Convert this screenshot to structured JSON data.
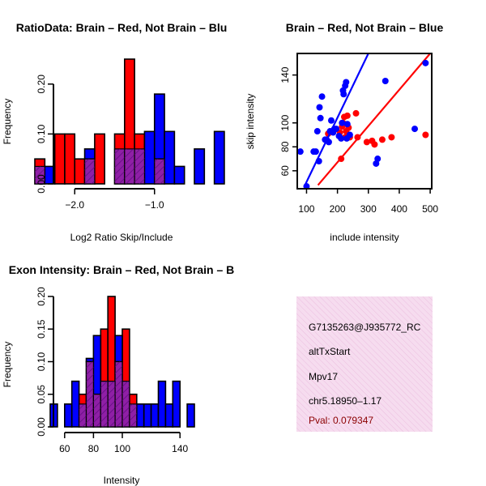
{
  "colors": {
    "red": "#ff0000",
    "blue": "#0000ff",
    "overlap": "#8f1fa6",
    "info_bg": "#f6dcef",
    "hatch": "#e9b3da",
    "pval": "#8b0000"
  },
  "chart_data": [
    {
      "type": "bar",
      "title": "RatioData: Brain – Red, Not Brain – Blu",
      "xlabel": "Log2 Ratio Skip/Include",
      "ylabel": "Frequency",
      "xlim": [
        -2.5,
        -0.5
      ],
      "ylim": [
        0,
        0.25
      ],
      "xticks": [
        {
          "v": -2.0,
          "t": "−2.0"
        },
        {
          "v": -1.0,
          "t": "−1.0"
        }
      ],
      "yticks": [
        {
          "v": 0,
          "t": "0.00"
        },
        {
          "v": 0.1,
          "t": "0.10"
        },
        {
          "v": 0.2,
          "t": "0.20"
        }
      ],
      "bin_width": 0.125,
      "series": [
        {
          "name": "Brain",
          "color": "red",
          "bins": [
            {
              "x0": -2.5,
              "y": 0.05
            },
            {
              "x0": -2.25,
              "y": 0.1
            },
            {
              "x0": -2.125,
              "y": 0.1
            },
            {
              "x0": -2.0,
              "y": 0.05
            },
            {
              "x0": -1.875,
              "y": 0.05
            },
            {
              "x0": -1.75,
              "y": 0.1
            },
            {
              "x0": -1.5,
              "y": 0.1
            },
            {
              "x0": -1.375,
              "y": 0.25
            },
            {
              "x0": -1.25,
              "y": 0.1
            },
            {
              "x0": -1.0,
              "y": 0.05
            }
          ]
        },
        {
          "name": "Not Brain",
          "color": "blue",
          "bins": [
            {
              "x0": -2.5,
              "y": 0.035
            },
            {
              "x0": -2.375,
              "y": 0.035
            },
            {
              "x0": -1.875,
              "y": 0.07
            },
            {
              "x0": -1.5,
              "y": 0.07
            },
            {
              "x0": -1.375,
              "y": 0.07
            },
            {
              "x0": -1.25,
              "y": 0.07
            },
            {
              "x0": -1.125,
              "y": 0.105
            },
            {
              "x0": -1.0,
              "y": 0.18
            },
            {
              "x0": -0.875,
              "y": 0.105
            },
            {
              "x0": -0.75,
              "y": 0.035
            },
            {
              "x0": -0.5,
              "y": 0.07
            },
            {
              "x0": -0.25,
              "y": 0.105
            }
          ]
        }
      ]
    },
    {
      "type": "scatter",
      "title": "Brain – Red, Not Brain – Blue",
      "xlabel": "include intensity",
      "ylabel": "skip intensity",
      "xlim": [
        70,
        505
      ],
      "ylim": [
        45,
        158
      ],
      "xticks": [
        {
          "v": 100,
          "t": "100"
        },
        {
          "v": 200,
          "t": "200"
        },
        {
          "v": 300,
          "t": "300"
        },
        {
          "v": 400,
          "t": "400"
        },
        {
          "v": 500,
          "t": "500"
        }
      ],
      "yticks": [
        {
          "v": 60,
          "t": "60"
        },
        {
          "v": 80,
          "t": "80"
        },
        {
          "v": 100,
          "t": "100"
        },
        {
          "v": 140,
          "t": "140"
        }
      ],
      "series": [
        {
          "name": "Brain",
          "color": "red",
          "points": [
            [
              170,
              91
            ],
            [
              208,
              92
            ],
            [
              215,
              97
            ],
            [
              218,
              100
            ],
            [
              222,
              105
            ],
            [
              228,
              93
            ],
            [
              232,
              106
            ],
            [
              236,
              96
            ],
            [
              238,
              90
            ],
            [
              240,
              88
            ],
            [
              260,
              108
            ],
            [
              265,
              88
            ],
            [
              295,
              84
            ],
            [
              312,
              85
            ],
            [
              320,
              82
            ],
            [
              345,
              86
            ],
            [
              375,
              88
            ],
            [
              485,
              90
            ],
            [
              212,
              70
            ],
            [
              225,
              88
            ]
          ],
          "fit": [
            [
              137,
              48
            ],
            [
              500,
              158
            ]
          ]
        },
        {
          "name": "Not Brain",
          "color": "blue",
          "points": [
            [
              80,
              76
            ],
            [
              100,
              47
            ],
            [
              123,
              76
            ],
            [
              130,
              76
            ],
            [
              135,
              93
            ],
            [
              140,
              68
            ],
            [
              142,
              113
            ],
            [
              145,
              104
            ],
            [
              150,
              122
            ],
            [
              160,
              86
            ],
            [
              165,
              86
            ],
            [
              172,
              84
            ],
            [
              176,
              93
            ],
            [
              180,
              102
            ],
            [
              186,
              92
            ],
            [
              190,
              95
            ],
            [
              196,
              95
            ],
            [
              205,
              89
            ],
            [
              212,
              87
            ],
            [
              215,
              100
            ],
            [
              218,
              127
            ],
            [
              220,
              124
            ],
            [
              225,
              131
            ],
            [
              228,
              134
            ],
            [
              232,
              99
            ],
            [
              240,
              90
            ],
            [
              325,
              66
            ],
            [
              330,
              70
            ],
            [
              355,
              135
            ],
            [
              450,
              95
            ],
            [
              485,
              150
            ],
            [
              230,
              87
            ]
          ],
          "fit": [
            [
              95,
              48
            ],
            [
              300,
              158
            ]
          ]
        }
      ]
    },
    {
      "type": "bar",
      "title": "Exon Intensity: Brain – Red, Not Brain – B",
      "xlabel": "Intensity",
      "ylabel": "Frequency",
      "xlim": [
        50,
        150
      ],
      "ylim": [
        0,
        0.2
      ],
      "xticks": [
        {
          "v": 60,
          "t": "60"
        },
        {
          "v": 80,
          "t": "80"
        },
        {
          "v": 100,
          "t": "100"
        },
        {
          "v": 140,
          "t": "140"
        }
      ],
      "yticks": [
        {
          "v": 0,
          "t": "0.00"
        },
        {
          "v": 0.05,
          "t": "0.05"
        },
        {
          "v": 0.1,
          "t": "0.10"
        },
        {
          "v": 0.15,
          "t": "0.15"
        },
        {
          "v": 0.2,
          "t": "0.20"
        }
      ],
      "bin_width": 5,
      "series": [
        {
          "name": "Brain",
          "color": "red",
          "bins": [
            {
              "x0": 70,
              "y": 0.05
            },
            {
              "x0": 75,
              "y": 0.1
            },
            {
              "x0": 80,
              "y": 0.05
            },
            {
              "x0": 85,
              "y": 0.15
            },
            {
              "x0": 90,
              "y": 0.2
            },
            {
              "x0": 95,
              "y": 0.1
            },
            {
              "x0": 100,
              "y": 0.15
            },
            {
              "x0": 105,
              "y": 0.05
            }
          ]
        },
        {
          "name": "Not Brain",
          "color": "blue",
          "bins": [
            {
              "x0": 50,
              "y": 0.035
            },
            {
              "x0": 60,
              "y": 0.035
            },
            {
              "x0": 65,
              "y": 0.07
            },
            {
              "x0": 70,
              "y": 0.035
            },
            {
              "x0": 75,
              "y": 0.105
            },
            {
              "x0": 80,
              "y": 0.14
            },
            {
              "x0": 85,
              "y": 0.07
            },
            {
              "x0": 90,
              "y": 0.07
            },
            {
              "x0": 95,
              "y": 0.14
            },
            {
              "x0": 100,
              "y": 0.07
            },
            {
              "x0": 105,
              "y": 0.035
            },
            {
              "x0": 110,
              "y": 0.035
            },
            {
              "x0": 115,
              "y": 0.035
            },
            {
              "x0": 120,
              "y": 0.035
            },
            {
              "x0": 125,
              "y": 0.07
            },
            {
              "x0": 130,
              "y": 0.035
            },
            {
              "x0": 135,
              "y": 0.07
            },
            {
              "x0": 145,
              "y": 0.035
            }
          ]
        }
      ]
    }
  ],
  "info_panel": {
    "probe_id": "G7135263@J935772_RC",
    "event_type": "altTxStart",
    "gene": "Mpv17",
    "location": "chr5.18950–1.17",
    "pval": "Pval: 0.079347"
  }
}
